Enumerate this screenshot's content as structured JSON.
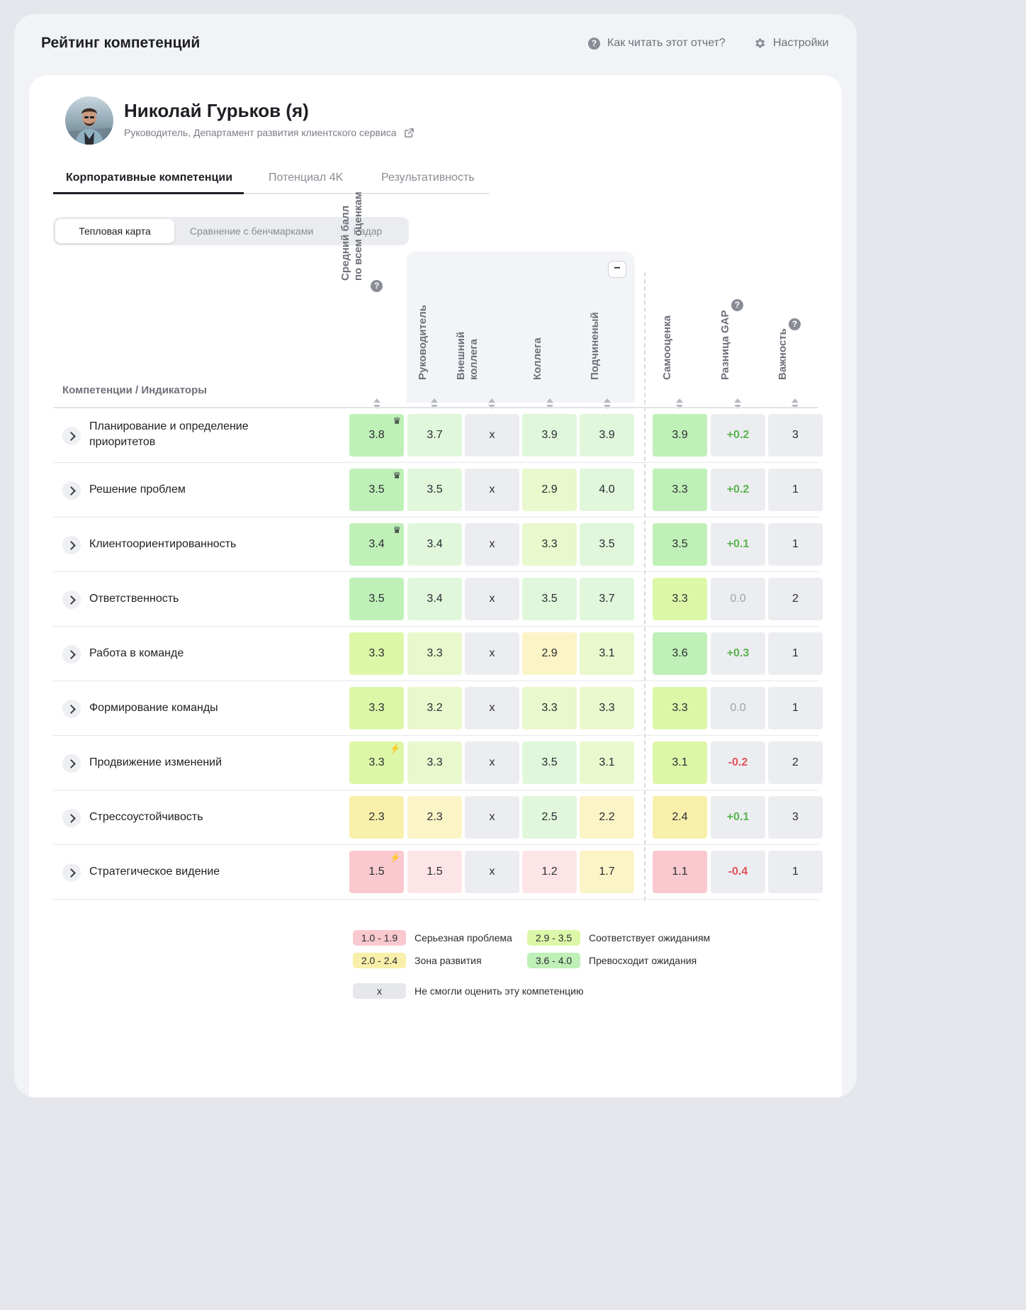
{
  "app": {
    "title": "Рейтинг компетенций",
    "help_link": "Как читать этот отчет?",
    "settings_link": "Настройки"
  },
  "profile": {
    "name": "Николай Гурьков (я)",
    "role": "Руководитель, Департамент развития клиентского сервиса"
  },
  "tabs": [
    {
      "label": "Корпоративные компетенции",
      "active": true
    },
    {
      "label": "Потенциал 4K",
      "active": false
    },
    {
      "label": "Результативность",
      "active": false
    }
  ],
  "view_switch": [
    {
      "label": "Тепловая карта",
      "active": true
    },
    {
      "label": "Сравнение с бенчмарками",
      "active": false
    },
    {
      "label": "Радар",
      "active": false
    }
  ],
  "table": {
    "competency_header": "Компетенции / Индикаторы",
    "columns": [
      {
        "key": "avg",
        "line1": "Средний балл",
        "line2": "по всем оценкам",
        "help": true
      },
      {
        "key": "manager",
        "line1": "Руководитель",
        "line2": "",
        "help": false
      },
      {
        "key": "external",
        "line1": "Внешний",
        "line2": "коллега",
        "help": false
      },
      {
        "key": "peer",
        "line1": "Коллега",
        "line2": "",
        "help": false
      },
      {
        "key": "sub",
        "line1": "Подчиненый",
        "line2": "",
        "help": false
      },
      {
        "key": "self",
        "line1": "Самооценка",
        "line2": "",
        "help": false
      },
      {
        "key": "gap",
        "line1": "Разница GAP",
        "line2": "",
        "help": true
      },
      {
        "key": "importance",
        "line1": "Важность",
        "line2": "",
        "help": true
      }
    ],
    "rows": [
      {
        "label": "Планирование и определение приоритетов",
        "avg": "3.8",
        "avg_badge": "crown-icon",
        "manager": "3.7",
        "external": "x",
        "peer": "3.9",
        "sub": "3.9",
        "self": "3.9",
        "gap": "+0.2",
        "importance": "3"
      },
      {
        "label": "Решение проблем",
        "avg": "3.5",
        "avg_badge": "crown-icon",
        "manager": "3.5",
        "external": "x",
        "peer": "2.9",
        "sub": "4.0",
        "self": "3.3",
        "gap": "+0.2",
        "importance": "1"
      },
      {
        "label": "Клиентоориентированность",
        "avg": "3.4",
        "avg_badge": "crown-icon",
        "manager": "3.4",
        "external": "x",
        "peer": "3.3",
        "sub": "3.5",
        "self": "3.5",
        "gap": "+0.1",
        "importance": "1"
      },
      {
        "label": "Ответственность",
        "avg": "3.5",
        "avg_badge": "",
        "manager": "3.4",
        "external": "x",
        "peer": "3.5",
        "sub": "3.7",
        "self": "3.3",
        "gap": "0.0",
        "importance": "2"
      },
      {
        "label": "Работа в команде",
        "avg": "3.3",
        "avg_badge": "",
        "manager": "3.3",
        "external": "x",
        "peer": "2.9",
        "sub": "3.1",
        "self": "3.6",
        "gap": "+0.3",
        "importance": "1"
      },
      {
        "label": "Формирование команды",
        "avg": "3.3",
        "avg_badge": "",
        "manager": "3.2",
        "external": "x",
        "peer": "3.3",
        "sub": "3.3",
        "self": "3.3",
        "gap": "0.0",
        "importance": "1"
      },
      {
        "label": "Продвижение изменений",
        "avg": "3.3",
        "avg_badge": "lightning-icon",
        "manager": "3.3",
        "external": "x",
        "peer": "3.5",
        "sub": "3.1",
        "self": "3.1",
        "gap": "-0.2",
        "importance": "2"
      },
      {
        "label": "Стрессоустойчивость",
        "avg": "2.3",
        "avg_badge": "",
        "manager": "2.3",
        "external": "x",
        "peer": "2.5",
        "sub": "2.2",
        "self": "2.4",
        "gap": "+0.1",
        "importance": "3"
      },
      {
        "label": "Стратегическое видение",
        "avg": "1.5",
        "avg_badge": "lightning-icon",
        "manager": "1.5",
        "external": "x",
        "peer": "1.2",
        "sub": "1.7",
        "self": "1.1",
        "gap": "-0.4",
        "importance": "1"
      }
    ]
  },
  "legend": [
    {
      "range": "1.0 - 1.9",
      "label": "Серьезная проблема",
      "color": "#f9c9cf"
    },
    {
      "range": "2.9 - 3.5",
      "label": "Соответствует ожиданиям",
      "color": "#ddf7a9"
    },
    {
      "range": "2.0 - 2.4",
      "label": "Зона развития",
      "color": "#f8efaa"
    },
    {
      "range": "3.6 - 4.0",
      "label": "Превосходит ожидания",
      "color": "#bff0b8"
    },
    {
      "range": "x",
      "label": "Не смогли оценить эту компетенцию",
      "color": "#e6e7eb"
    }
  ],
  "colors": {
    "gap_positive": "#59b44f",
    "gap_negative": "#e1515c",
    "gap_zero": "#a0a2aa"
  }
}
